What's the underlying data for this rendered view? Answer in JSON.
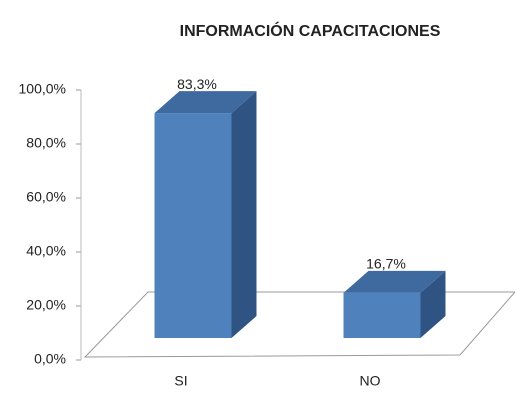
{
  "chart_data": {
    "type": "bar3d",
    "title": "INFORMACIÓN CAPACITACIONES",
    "categories": [
      "SI",
      "NO"
    ],
    "values": [
      83.3,
      16.7
    ],
    "value_labels": [
      "83,3%",
      "16,7%"
    ],
    "color": "#4f81bd",
    "ylim": [
      0,
      100
    ],
    "yticks": [
      {
        "value": 0,
        "label": "0,0%"
      },
      {
        "value": 20,
        "label": "20,0%"
      },
      {
        "value": 40,
        "label": "40,0%"
      },
      {
        "value": 60,
        "label": "60,0%"
      },
      {
        "value": 80,
        "label": "80,0%"
      },
      {
        "value": 100,
        "label": "100,0%"
      }
    ]
  }
}
